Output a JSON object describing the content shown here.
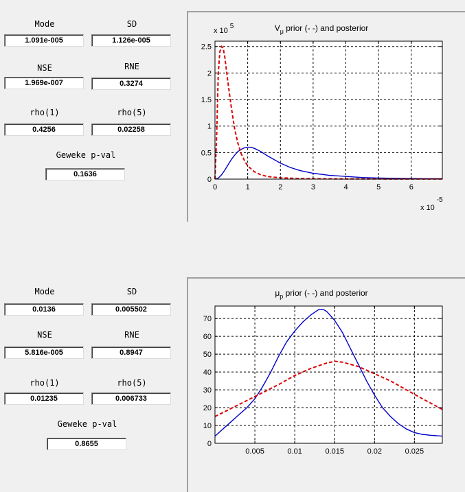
{
  "panels": [
    {
      "stats": {
        "mode_label": "Mode",
        "mode": "1.091e-005",
        "sd_label": "SD",
        "sd": "1.126e-005",
        "nse_label": "NSE",
        "nse": "1.969e-007",
        "rne_label": "RNE",
        "rne": "0.3274",
        "rho1_label": "rho(1)",
        "rho1": "0.4256",
        "rho5_label": "rho(5)",
        "rho5": "0.02258",
        "geweke_label": "Geweke p-val",
        "geweke": "0.1636"
      }
    },
    {
      "stats": {
        "mode_label": "Mode",
        "mode": "0.0136",
        "sd_label": "SD",
        "sd": "0.005502",
        "nse_label": "NSE",
        "nse": "5.816e-005",
        "rne_label": "RNE",
        "rne": "0.8947",
        "rho1_label": "rho(1)",
        "rho1": "0.01235",
        "rho5_label": "rho(5)",
        "rho5": "0.006733",
        "geweke_label": "Geweke p-val",
        "geweke": "0.8655"
      }
    }
  ],
  "colors": {
    "posterior": "#0000cc",
    "prior": "#dd0000"
  },
  "chart_data": [
    {
      "type": "line",
      "title_main": "V",
      "title_sub": "μ",
      "title_rest": " prior (- -) and posterior",
      "x_exponent_label": "x 10",
      "x_exponent": "-5",
      "y_exponent_label": "x 10",
      "y_exponent": "5",
      "xlim": [
        0,
        6.95
      ],
      "ylim": [
        0,
        2.6
      ],
      "xticks": [
        0,
        1,
        2,
        3,
        4,
        5,
        6
      ],
      "xtick_labels": [
        "0",
        "1",
        "2",
        "3",
        "4",
        "5",
        "6"
      ],
      "yticks": [
        0,
        0.5,
        1,
        1.5,
        2,
        2.5
      ],
      "ytick_labels": [
        "0",
        "0.5",
        "1",
        "1.5",
        "2",
        "2.5"
      ],
      "grid": true,
      "series": [
        {
          "name": "posterior",
          "style": "solid",
          "x": [
            0,
            0.1,
            0.2,
            0.3,
            0.4,
            0.5,
            0.6,
            0.7,
            0.8,
            0.9,
            1.0,
            1.1,
            1.2,
            1.4,
            1.6,
            1.8,
            2.0,
            2.3,
            2.6,
            3.0,
            3.5,
            4.0,
            4.5,
            5.0,
            5.5,
            6.0,
            6.5,
            6.95
          ],
          "y": [
            0,
            0.02,
            0.08,
            0.17,
            0.27,
            0.37,
            0.45,
            0.52,
            0.56,
            0.59,
            0.6,
            0.6,
            0.58,
            0.52,
            0.44,
            0.37,
            0.3,
            0.22,
            0.16,
            0.11,
            0.07,
            0.05,
            0.03,
            0.02,
            0.015,
            0.01,
            0.008,
            0.006
          ]
        },
        {
          "name": "prior",
          "style": "dashed",
          "x": [
            0,
            0.05,
            0.1,
            0.15,
            0.2,
            0.25,
            0.3,
            0.35,
            0.4,
            0.5,
            0.6,
            0.7,
            0.8,
            0.9,
            1.0,
            1.2,
            1.4,
            1.6,
            1.8,
            2.0,
            2.5,
            3.0,
            4.0,
            5.0,
            6.0,
            6.95
          ],
          "y": [
            0,
            0.8,
            2.0,
            2.4,
            2.5,
            2.47,
            2.3,
            2.05,
            1.8,
            1.35,
            0.95,
            0.68,
            0.48,
            0.35,
            0.25,
            0.14,
            0.08,
            0.05,
            0.035,
            0.025,
            0.012,
            0.007,
            0.003,
            0.002,
            0.001,
            0.001
          ]
        }
      ]
    },
    {
      "type": "line",
      "title_main": "μ",
      "title_sub": "p",
      "title_rest": " prior (- -) and posterior",
      "xlim": [
        0,
        0.0285
      ],
      "ylim": [
        0,
        77
      ],
      "xticks": [
        0.005,
        0.01,
        0.015,
        0.02,
        0.025
      ],
      "xtick_labels": [
        "0.005",
        "0.01",
        "0.015",
        "0.02",
        "0.025"
      ],
      "yticks": [
        0,
        10,
        20,
        30,
        40,
        50,
        60,
        70
      ],
      "ytick_labels": [
        "0",
        "10",
        "20",
        "30",
        "40",
        "50",
        "60",
        "70"
      ],
      "grid": true,
      "series": [
        {
          "name": "posterior",
          "style": "solid",
          "x": [
            0,
            0.001,
            0.002,
            0.003,
            0.004,
            0.005,
            0.006,
            0.007,
            0.008,
            0.009,
            0.01,
            0.011,
            0.012,
            0.013,
            0.0136,
            0.014,
            0.015,
            0.016,
            0.017,
            0.018,
            0.019,
            0.02,
            0.021,
            0.022,
            0.023,
            0.024,
            0.025,
            0.026,
            0.027,
            0.0285
          ],
          "y": [
            4,
            8,
            12,
            16,
            20,
            25,
            32,
            40,
            49,
            57,
            63,
            68,
            72,
            75,
            75,
            74,
            69,
            62,
            53,
            44,
            35,
            27,
            20,
            15,
            11,
            8,
            6,
            5,
            4.5,
            4
          ]
        },
        {
          "name": "prior",
          "style": "dashed",
          "x": [
            0,
            0.002,
            0.004,
            0.006,
            0.008,
            0.01,
            0.012,
            0.014,
            0.015,
            0.016,
            0.018,
            0.02,
            0.022,
            0.024,
            0.026,
            0.0285
          ],
          "y": [
            15,
            19.5,
            24,
            28.5,
            33,
            38,
            42,
            45,
            46,
            45.5,
            43,
            39,
            35,
            30,
            25,
            19
          ]
        }
      ]
    }
  ]
}
